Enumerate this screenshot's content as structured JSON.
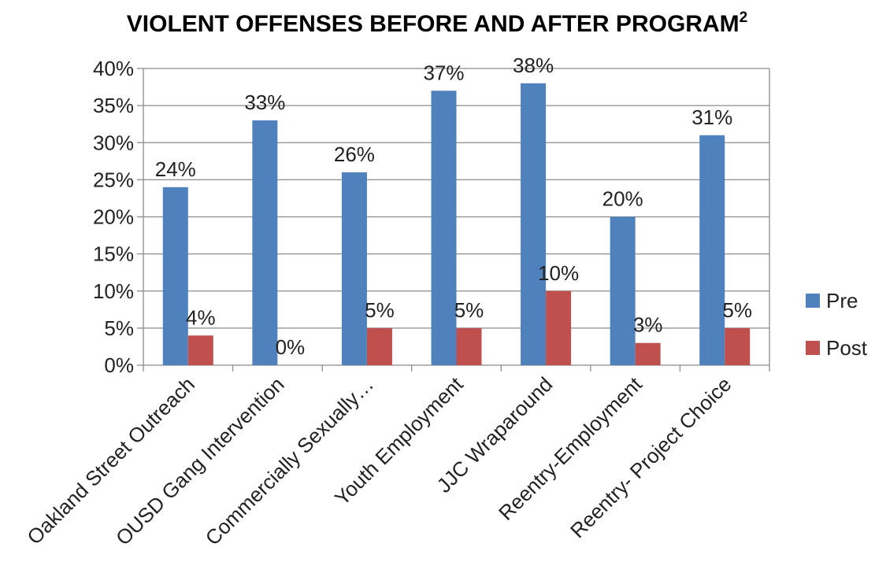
{
  "chart_data": {
    "type": "bar",
    "title": "VIOLENT OFFENSES BEFORE AND AFTER PROGRAM",
    "title_superscript": "2",
    "categories": [
      "Oakland Street Outreach",
      "OUSD Gang Intervention",
      "Commercially Sexually…",
      "Youth Employment",
      "JJC Wraparound",
      "Reentry-Employment",
      "Reentry- Project Choice"
    ],
    "series": [
      {
        "name": "Pre",
        "color": "#4F81BD",
        "values": [
          24,
          33,
          26,
          37,
          38,
          20,
          31
        ]
      },
      {
        "name": "Post",
        "color": "#C0504D",
        "values": [
          4,
          0,
          5,
          5,
          10,
          3,
          5
        ]
      }
    ],
    "value_suffix": "%",
    "ylim": [
      0,
      40
    ],
    "yticks": [
      "0%",
      "5%",
      "10%",
      "15%",
      "20%",
      "25%",
      "30%",
      "35%",
      "40%"
    ],
    "grid": true,
    "legend": "right",
    "gridline_color": "#8c8c8c"
  }
}
